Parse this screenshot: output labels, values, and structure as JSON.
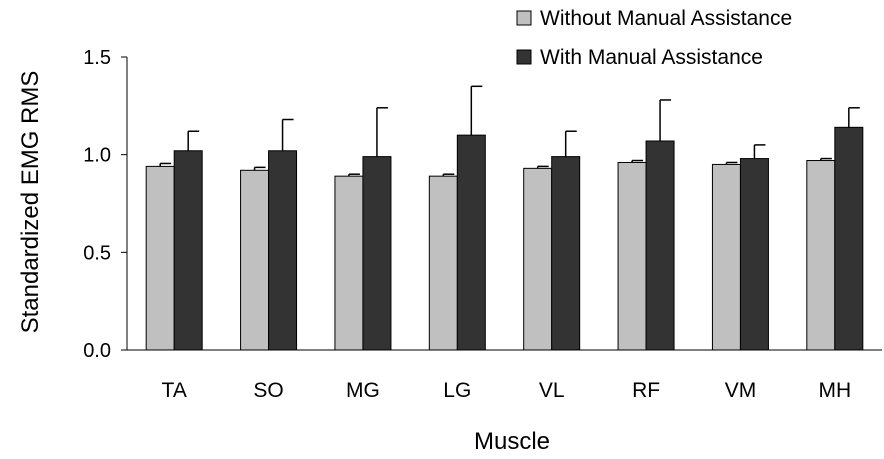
{
  "chart_data": {
    "type": "bar",
    "categories": [
      "TA",
      "SO",
      "MG",
      "LG",
      "VL",
      "RF",
      "VM",
      "MH"
    ],
    "series": [
      {
        "name": "Without Manual Assistance",
        "color": "#c0c0c0",
        "values": [
          0.94,
          0.92,
          0.89,
          0.89,
          0.93,
          0.96,
          0.95,
          0.97
        ],
        "errors": [
          0.015,
          0.015,
          0.01,
          0.01,
          0.01,
          0.01,
          0.01,
          0.01
        ]
      },
      {
        "name": "With Manual Assistance",
        "color": "#333333",
        "values": [
          1.02,
          1.02,
          0.99,
          1.1,
          0.99,
          1.07,
          0.98,
          1.14
        ],
        "errors": [
          0.1,
          0.16,
          0.25,
          0.25,
          0.13,
          0.21,
          0.07,
          0.1
        ]
      }
    ],
    "ylim": [
      0,
      1.5
    ],
    "yticks": [
      "0.0",
      "0.5",
      "1.0",
      "1.5"
    ],
    "ytick_values": [
      0,
      0.5,
      1.0,
      1.5
    ],
    "xlabel": "Muscle",
    "ylabel": "Standardized EMG RMS",
    "legend_position": "top-right",
    "grid": false
  }
}
